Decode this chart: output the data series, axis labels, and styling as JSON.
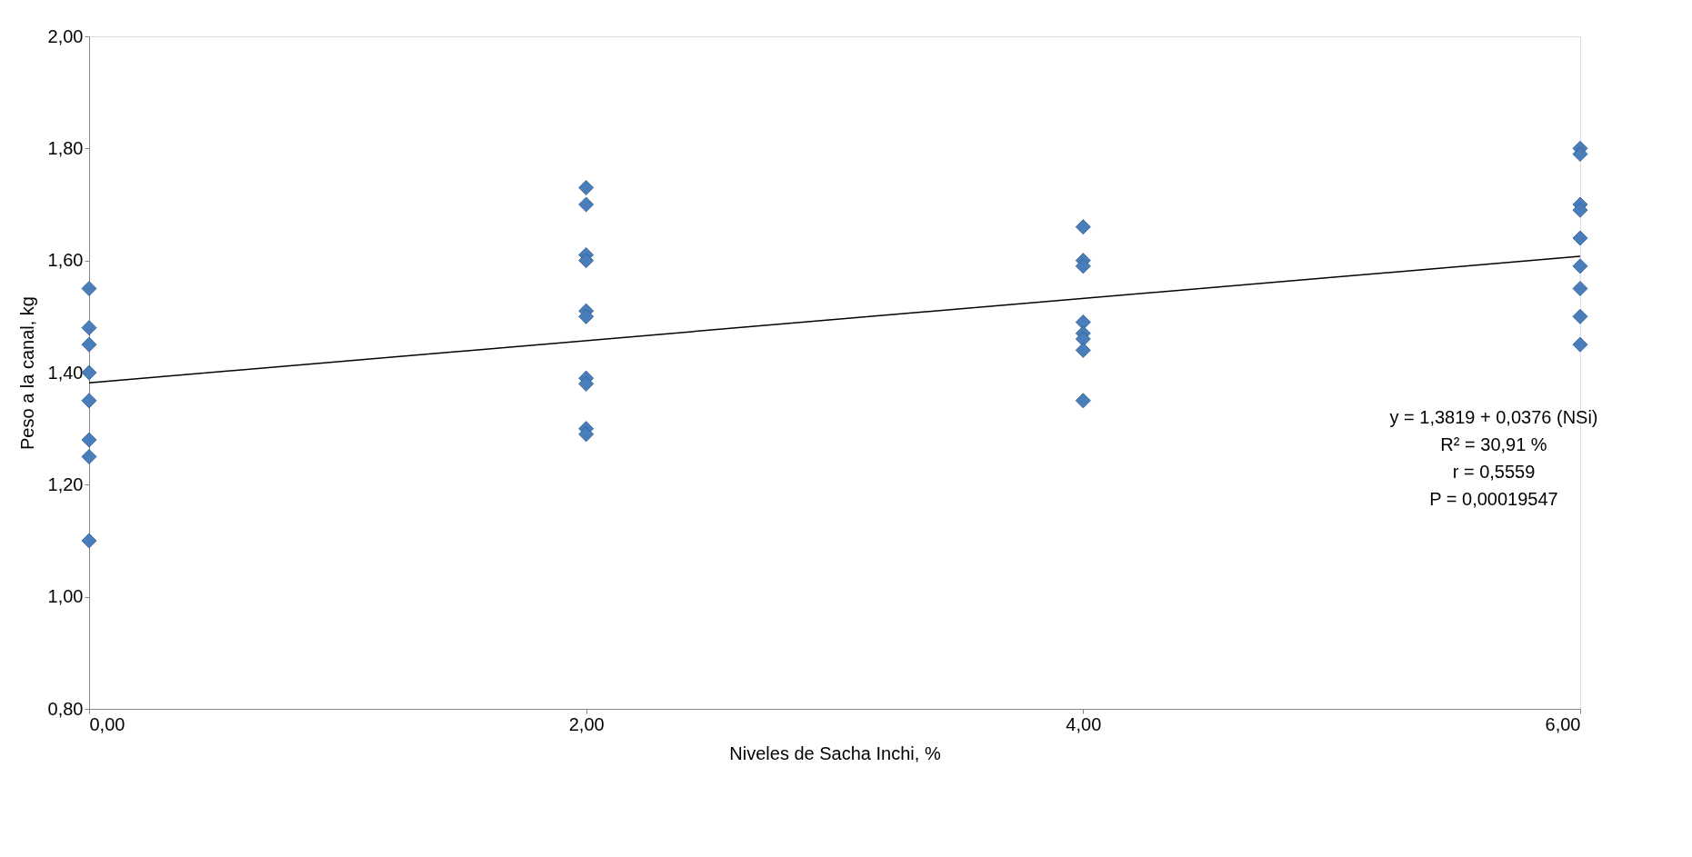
{
  "chart_data": {
    "type": "scatter",
    "xlabel": "Niveles de Sacha Inchi, %",
    "ylabel": "Peso a la canal, kg",
    "series": [
      {
        "color": "#4a7ebb",
        "marker": "diamond",
        "x": [
          0,
          0,
          0,
          0,
          0,
          0,
          0,
          0,
          2,
          2,
          2,
          2,
          2,
          2,
          2,
          2,
          2,
          2,
          4,
          4,
          4,
          4,
          4,
          4,
          4,
          4,
          6,
          6,
          6,
          6,
          6,
          6,
          6,
          6,
          6
        ],
        "values": [
          1.55,
          1.48,
          1.45,
          1.4,
          1.35,
          1.28,
          1.25,
          1.1,
          1.73,
          1.7,
          1.61,
          1.6,
          1.51,
          1.5,
          1.39,
          1.38,
          1.3,
          1.29,
          1.66,
          1.6,
          1.59,
          1.49,
          1.47,
          1.46,
          1.44,
          1.35,
          1.8,
          1.79,
          1.7,
          1.69,
          1.64,
          1.59,
          1.55,
          1.5,
          1.45
        ]
      },
      {
        "type": "line",
        "color": "#000000",
        "x": [
          0,
          6
        ],
        "values": [
          1.3819,
          1.6075
        ]
      }
    ],
    "xlim": [
      0,
      6
    ],
    "xticks": [
      {
        "value": 0,
        "label": "0,00"
      },
      {
        "value": 2,
        "label": "2,00"
      },
      {
        "value": 4,
        "label": "4,00"
      },
      {
        "value": 6,
        "label": "6,00"
      }
    ],
    "ylim": [
      0.8,
      2.0
    ],
    "yticks": [
      {
        "value": 0.8,
        "label": "0,80"
      },
      {
        "value": 1.0,
        "label": "1,00"
      },
      {
        "value": 1.2,
        "label": "1,20"
      },
      {
        "value": 1.4,
        "label": "1,40"
      },
      {
        "value": 1.6,
        "label": "1,60"
      },
      {
        "value": 1.8,
        "label": "1,80"
      },
      {
        "value": 2.0,
        "label": "2,00"
      }
    ],
    "grid": false,
    "annotations": [
      "y =  1,3819 + 0,0376 (NSi)",
      "R² = 30,91 %",
      "r = 0,5559",
      "P = 0,00019547"
    ]
  }
}
